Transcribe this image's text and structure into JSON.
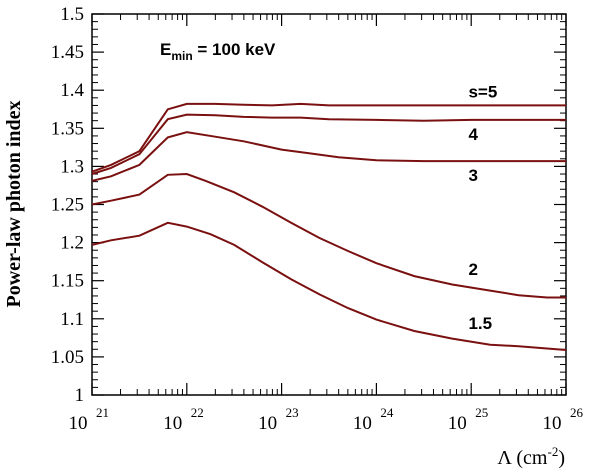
{
  "chart_data": {
    "type": "line",
    "title": "",
    "xlabel": "Λ (cm",
    "xlabel_sup": "-2",
    "xlabel_close": ")",
    "ylabel": "Power-law photon index",
    "xscale": "log",
    "xlim_exp": [
      21,
      26
    ],
    "ylim": [
      1.0,
      1.5
    ],
    "x_ticks": [
      {
        "base": "10",
        "exp": "21"
      },
      {
        "base": "10",
        "exp": "22"
      },
      {
        "base": "10",
        "exp": "23"
      },
      {
        "base": "10",
        "exp": "24"
      },
      {
        "base": "10",
        "exp": "25"
      },
      {
        "base": "10",
        "exp": "26"
      }
    ],
    "y_ticks": [
      "1",
      "1.05",
      "1.1",
      "1.15",
      "1.2",
      "1.25",
      "1.3",
      "1.35",
      "1.4",
      "1.45",
      "1.5"
    ],
    "y_tick_values": [
      1.0,
      1.05,
      1.1,
      1.15,
      1.2,
      1.25,
      1.3,
      1.35,
      1.4,
      1.45,
      1.5
    ],
    "annotation": {
      "main": "E",
      "sub": "min",
      "rest": " = 100 keV"
    },
    "line_color": "#7a1010",
    "series": [
      {
        "name": "s=5",
        "label": "s=5",
        "log_x": [
          21.0,
          21.2,
          21.5,
          21.8,
          22.0,
          22.3,
          22.6,
          22.9,
          23.2,
          23.5,
          24.0,
          24.5,
          25.0,
          25.5,
          26.0
        ],
        "y": [
          1.293,
          1.302,
          1.32,
          1.375,
          1.382,
          1.382,
          1.381,
          1.38,
          1.382,
          1.38,
          1.38,
          1.38,
          1.38,
          1.38,
          1.38
        ]
      },
      {
        "name": "4",
        "label": "4",
        "log_x": [
          21.0,
          21.2,
          21.5,
          21.8,
          22.0,
          22.3,
          22.6,
          22.9,
          23.2,
          23.5,
          24.0,
          24.5,
          25.0,
          25.5,
          26.0
        ],
        "y": [
          1.29,
          1.298,
          1.316,
          1.362,
          1.368,
          1.367,
          1.365,
          1.364,
          1.364,
          1.362,
          1.361,
          1.36,
          1.361,
          1.361,
          1.361
        ]
      },
      {
        "name": "3",
        "label": "3",
        "log_x": [
          21.0,
          21.2,
          21.5,
          21.8,
          22.0,
          22.3,
          22.6,
          23.0,
          23.3,
          23.6,
          24.0,
          24.5,
          25.0,
          25.5,
          26.0
        ],
        "y": [
          1.281,
          1.287,
          1.302,
          1.338,
          1.345,
          1.339,
          1.333,
          1.322,
          1.317,
          1.312,
          1.308,
          1.307,
          1.307,
          1.307,
          1.307
        ]
      },
      {
        "name": "2",
        "label": "2",
        "log_x": [
          21.0,
          21.2,
          21.5,
          21.8,
          22.0,
          22.2,
          22.5,
          22.8,
          23.1,
          23.4,
          23.7,
          24.0,
          24.4,
          24.8,
          25.2,
          25.5,
          25.8,
          26.0
        ],
        "y": [
          1.25,
          1.255,
          1.263,
          1.289,
          1.29,
          1.281,
          1.266,
          1.247,
          1.226,
          1.206,
          1.189,
          1.173,
          1.156,
          1.145,
          1.137,
          1.131,
          1.128,
          1.128
        ]
      },
      {
        "name": "1.5",
        "label": "1.5",
        "log_x": [
          21.0,
          21.2,
          21.5,
          21.8,
          22.0,
          22.25,
          22.5,
          22.8,
          23.1,
          23.4,
          23.7,
          24.0,
          24.4,
          24.8,
          25.2,
          25.5,
          25.8,
          26.0
        ],
        "y": [
          1.197,
          1.203,
          1.209,
          1.226,
          1.221,
          1.211,
          1.197,
          1.174,
          1.152,
          1.132,
          1.114,
          1.099,
          1.084,
          1.074,
          1.066,
          1.064,
          1.061,
          1.059
        ]
      }
    ]
  }
}
